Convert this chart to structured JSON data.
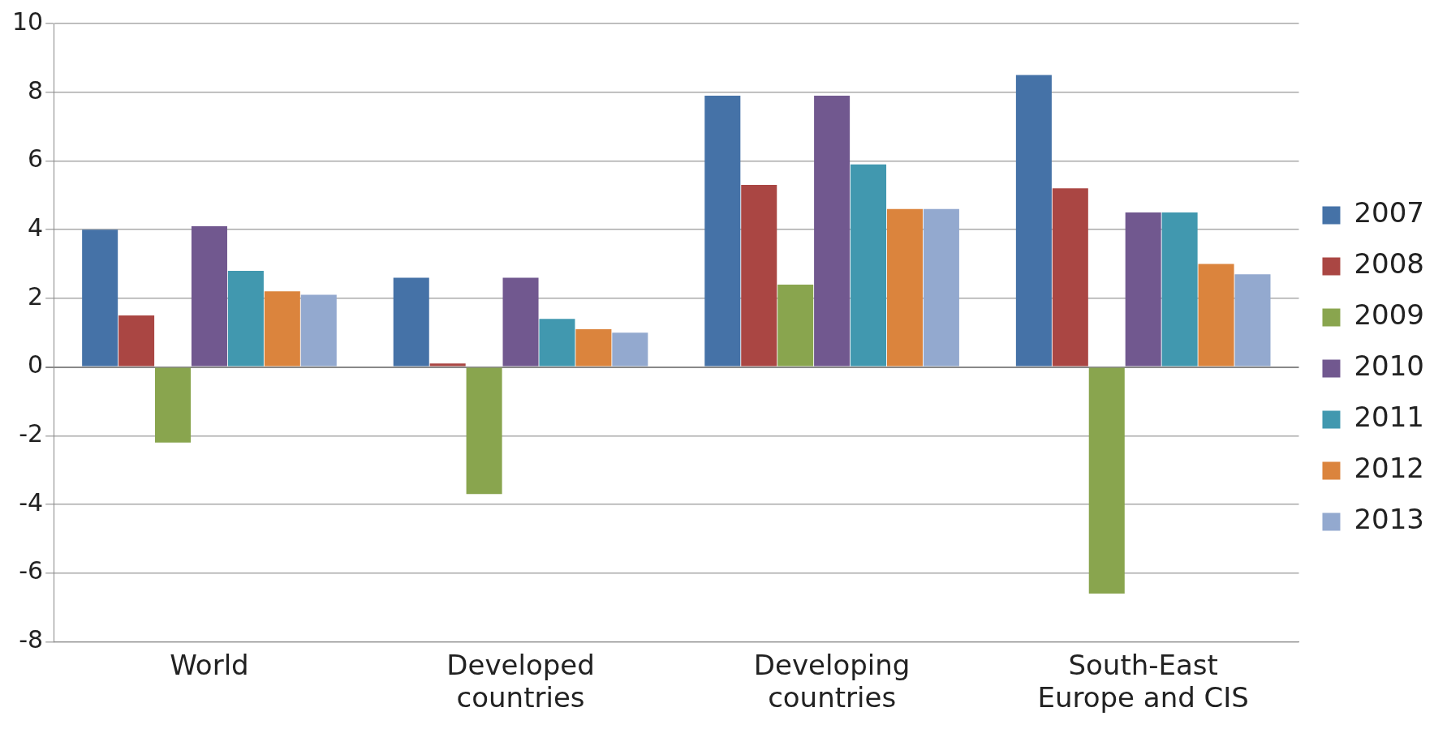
{
  "chart_data": {
    "type": "bar",
    "categories": [
      "World",
      "Developed countries",
      "Developing countries",
      "South-East Europe and CIS"
    ],
    "series": [
      {
        "name": "2007",
        "color": "#4572a7",
        "values": [
          4.0,
          2.6,
          7.9,
          8.5
        ]
      },
      {
        "name": "2008",
        "color": "#aa4643",
        "values": [
          1.5,
          0.1,
          5.3,
          5.2
        ]
      },
      {
        "name": "2009",
        "color": "#89a54e",
        "values": [
          -2.2,
          -3.7,
          2.4,
          -6.6
        ]
      },
      {
        "name": "2010",
        "color": "#71588f",
        "values": [
          4.1,
          2.6,
          7.9,
          4.5
        ]
      },
      {
        "name": "2011",
        "color": "#4198af",
        "values": [
          2.8,
          1.4,
          5.9,
          4.5
        ]
      },
      {
        "name": "2012",
        "color": "#db843d",
        "values": [
          2.2,
          1.1,
          4.6,
          3.0
        ]
      },
      {
        "name": "2013",
        "color": "#93a9cf",
        "values": [
          2.1,
          1.0,
          4.6,
          2.7
        ]
      }
    ],
    "ylim": [
      -8,
      10
    ],
    "yticks": [
      -8,
      -6,
      -4,
      -2,
      0,
      2,
      4,
      6,
      8,
      10
    ],
    "grid": "y",
    "legend": "right"
  }
}
